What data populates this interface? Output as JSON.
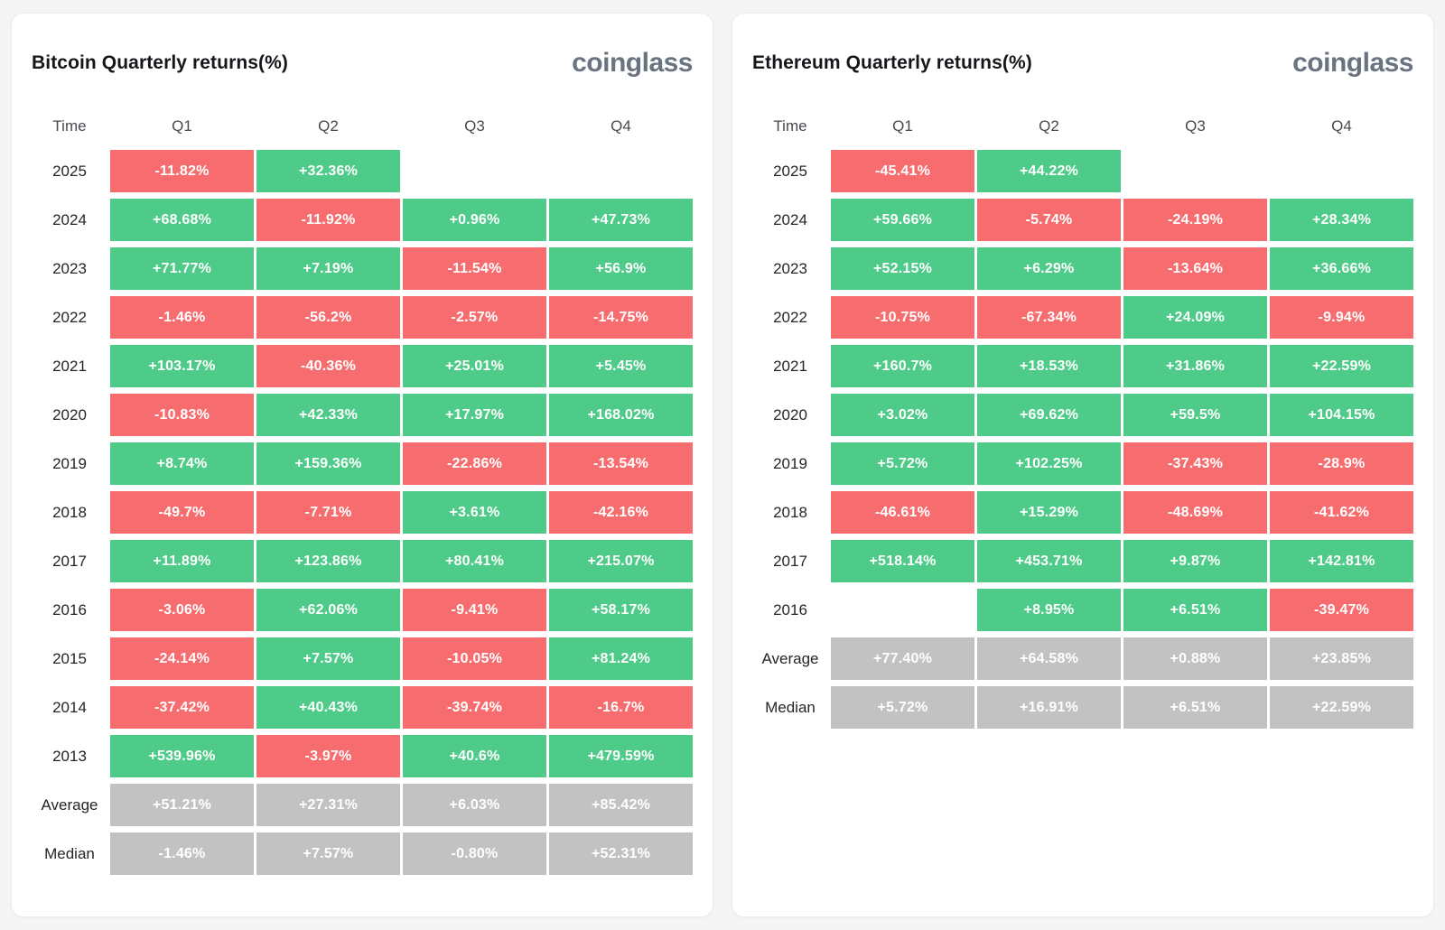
{
  "page_background": "#f5f5f6",
  "colors": {
    "positive": "#4ecb89",
    "negative": "#f76d6f",
    "neutral": "#c2c2c2"
  },
  "chart_data": [
    {
      "type": "heatmap",
      "title": "Bitcoin Quarterly returns(%)",
      "brand": "coinglass",
      "columns": [
        "Time",
        "Q1",
        "Q2",
        "Q3",
        "Q4"
      ],
      "rows": [
        {
          "label": "2025",
          "cells": [
            {
              "text": "-11.82%",
              "sign": "negative"
            },
            {
              "text": "+32.36%",
              "sign": "positive"
            },
            null,
            null
          ]
        },
        {
          "label": "2024",
          "cells": [
            {
              "text": "+68.68%",
              "sign": "positive"
            },
            {
              "text": "-11.92%",
              "sign": "negative"
            },
            {
              "text": "+0.96%",
              "sign": "positive"
            },
            {
              "text": "+47.73%",
              "sign": "positive"
            }
          ]
        },
        {
          "label": "2023",
          "cells": [
            {
              "text": "+71.77%",
              "sign": "positive"
            },
            {
              "text": "+7.19%",
              "sign": "positive"
            },
            {
              "text": "-11.54%",
              "sign": "negative"
            },
            {
              "text": "+56.9%",
              "sign": "positive"
            }
          ]
        },
        {
          "label": "2022",
          "cells": [
            {
              "text": "-1.46%",
              "sign": "negative"
            },
            {
              "text": "-56.2%",
              "sign": "negative"
            },
            {
              "text": "-2.57%",
              "sign": "negative"
            },
            {
              "text": "-14.75%",
              "sign": "negative"
            }
          ]
        },
        {
          "label": "2021",
          "cells": [
            {
              "text": "+103.17%",
              "sign": "positive"
            },
            {
              "text": "-40.36%",
              "sign": "negative"
            },
            {
              "text": "+25.01%",
              "sign": "positive"
            },
            {
              "text": "+5.45%",
              "sign": "positive"
            }
          ]
        },
        {
          "label": "2020",
          "cells": [
            {
              "text": "-10.83%",
              "sign": "negative"
            },
            {
              "text": "+42.33%",
              "sign": "positive"
            },
            {
              "text": "+17.97%",
              "sign": "positive"
            },
            {
              "text": "+168.02%",
              "sign": "positive"
            }
          ]
        },
        {
          "label": "2019",
          "cells": [
            {
              "text": "+8.74%",
              "sign": "positive"
            },
            {
              "text": "+159.36%",
              "sign": "positive"
            },
            {
              "text": "-22.86%",
              "sign": "negative"
            },
            {
              "text": "-13.54%",
              "sign": "negative"
            }
          ]
        },
        {
          "label": "2018",
          "cells": [
            {
              "text": "-49.7%",
              "sign": "negative"
            },
            {
              "text": "-7.71%",
              "sign": "negative"
            },
            {
              "text": "+3.61%",
              "sign": "positive"
            },
            {
              "text": "-42.16%",
              "sign": "negative"
            }
          ]
        },
        {
          "label": "2017",
          "cells": [
            {
              "text": "+11.89%",
              "sign": "positive"
            },
            {
              "text": "+123.86%",
              "sign": "positive"
            },
            {
              "text": "+80.41%",
              "sign": "positive"
            },
            {
              "text": "+215.07%",
              "sign": "positive"
            }
          ]
        },
        {
          "label": "2016",
          "cells": [
            {
              "text": "-3.06%",
              "sign": "negative"
            },
            {
              "text": "+62.06%",
              "sign": "positive"
            },
            {
              "text": "-9.41%",
              "sign": "negative"
            },
            {
              "text": "+58.17%",
              "sign": "positive"
            }
          ]
        },
        {
          "label": "2015",
          "cells": [
            {
              "text": "-24.14%",
              "sign": "negative"
            },
            {
              "text": "+7.57%",
              "sign": "positive"
            },
            {
              "text": "-10.05%",
              "sign": "negative"
            },
            {
              "text": "+81.24%",
              "sign": "positive"
            }
          ]
        },
        {
          "label": "2014",
          "cells": [
            {
              "text": "-37.42%",
              "sign": "negative"
            },
            {
              "text": "+40.43%",
              "sign": "positive"
            },
            {
              "text": "-39.74%",
              "sign": "negative"
            },
            {
              "text": "-16.7%",
              "sign": "negative"
            }
          ]
        },
        {
          "label": "2013",
          "cells": [
            {
              "text": "+539.96%",
              "sign": "positive"
            },
            {
              "text": "-3.97%",
              "sign": "negative"
            },
            {
              "text": "+40.6%",
              "sign": "positive"
            },
            {
              "text": "+479.59%",
              "sign": "positive"
            }
          ]
        },
        {
          "label": "Average",
          "cells": [
            {
              "text": "+51.21%",
              "sign": "neutral"
            },
            {
              "text": "+27.31%",
              "sign": "neutral"
            },
            {
              "text": "+6.03%",
              "sign": "neutral"
            },
            {
              "text": "+85.42%",
              "sign": "neutral"
            }
          ]
        },
        {
          "label": "Median",
          "cells": [
            {
              "text": "-1.46%",
              "sign": "neutral"
            },
            {
              "text": "+7.57%",
              "sign": "neutral"
            },
            {
              "text": "-0.80%",
              "sign": "neutral"
            },
            {
              "text": "+52.31%",
              "sign": "neutral"
            }
          ]
        }
      ]
    },
    {
      "type": "heatmap",
      "title": "Ethereum Quarterly returns(%)",
      "brand": "coinglass",
      "columns": [
        "Time",
        "Q1",
        "Q2",
        "Q3",
        "Q4"
      ],
      "rows": [
        {
          "label": "2025",
          "cells": [
            {
              "text": "-45.41%",
              "sign": "negative"
            },
            {
              "text": "+44.22%",
              "sign": "positive"
            },
            null,
            null
          ]
        },
        {
          "label": "2024",
          "cells": [
            {
              "text": "+59.66%",
              "sign": "positive"
            },
            {
              "text": "-5.74%",
              "sign": "negative"
            },
            {
              "text": "-24.19%",
              "sign": "negative"
            },
            {
              "text": "+28.34%",
              "sign": "positive"
            }
          ]
        },
        {
          "label": "2023",
          "cells": [
            {
              "text": "+52.15%",
              "sign": "positive"
            },
            {
              "text": "+6.29%",
              "sign": "positive"
            },
            {
              "text": "-13.64%",
              "sign": "negative"
            },
            {
              "text": "+36.66%",
              "sign": "positive"
            }
          ]
        },
        {
          "label": "2022",
          "cells": [
            {
              "text": "-10.75%",
              "sign": "negative"
            },
            {
              "text": "-67.34%",
              "sign": "negative"
            },
            {
              "text": "+24.09%",
              "sign": "positive"
            },
            {
              "text": "-9.94%",
              "sign": "negative"
            }
          ]
        },
        {
          "label": "2021",
          "cells": [
            {
              "text": "+160.7%",
              "sign": "positive"
            },
            {
              "text": "+18.53%",
              "sign": "positive"
            },
            {
              "text": "+31.86%",
              "sign": "positive"
            },
            {
              "text": "+22.59%",
              "sign": "positive"
            }
          ]
        },
        {
          "label": "2020",
          "cells": [
            {
              "text": "+3.02%",
              "sign": "positive"
            },
            {
              "text": "+69.62%",
              "sign": "positive"
            },
            {
              "text": "+59.5%",
              "sign": "positive"
            },
            {
              "text": "+104.15%",
              "sign": "positive"
            }
          ]
        },
        {
          "label": "2019",
          "cells": [
            {
              "text": "+5.72%",
              "sign": "positive"
            },
            {
              "text": "+102.25%",
              "sign": "positive"
            },
            {
              "text": "-37.43%",
              "sign": "negative"
            },
            {
              "text": "-28.9%",
              "sign": "negative"
            }
          ]
        },
        {
          "label": "2018",
          "cells": [
            {
              "text": "-46.61%",
              "sign": "negative"
            },
            {
              "text": "+15.29%",
              "sign": "positive"
            },
            {
              "text": "-48.69%",
              "sign": "negative"
            },
            {
              "text": "-41.62%",
              "sign": "negative"
            }
          ]
        },
        {
          "label": "2017",
          "cells": [
            {
              "text": "+518.14%",
              "sign": "positive"
            },
            {
              "text": "+453.71%",
              "sign": "positive"
            },
            {
              "text": "+9.87%",
              "sign": "positive"
            },
            {
              "text": "+142.81%",
              "sign": "positive"
            }
          ]
        },
        {
          "label": "2016",
          "cells": [
            null,
            {
              "text": "+8.95%",
              "sign": "positive"
            },
            {
              "text": "+6.51%",
              "sign": "positive"
            },
            {
              "text": "-39.47%",
              "sign": "negative"
            }
          ]
        },
        {
          "label": "Average",
          "cells": [
            {
              "text": "+77.40%",
              "sign": "neutral"
            },
            {
              "text": "+64.58%",
              "sign": "neutral"
            },
            {
              "text": "+0.88%",
              "sign": "neutral"
            },
            {
              "text": "+23.85%",
              "sign": "neutral"
            }
          ]
        },
        {
          "label": "Median",
          "cells": [
            {
              "text": "+5.72%",
              "sign": "neutral"
            },
            {
              "text": "+16.91%",
              "sign": "neutral"
            },
            {
              "text": "+6.51%",
              "sign": "neutral"
            },
            {
              "text": "+22.59%",
              "sign": "neutral"
            }
          ]
        }
      ]
    }
  ]
}
